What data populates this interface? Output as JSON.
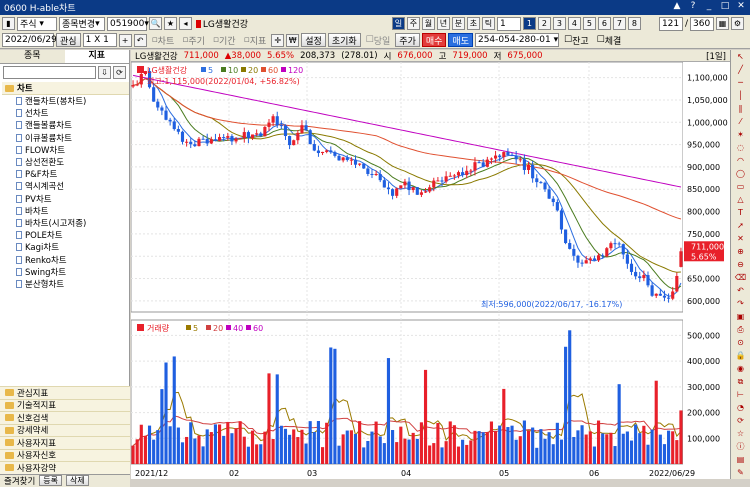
{
  "window": {
    "title": "0600 H-able차트",
    "controls": [
      "▲",
      "?",
      "_",
      "□",
      "✕"
    ]
  },
  "toolbar1": {
    "type": "주식",
    "mode": "종목변경",
    "code": "051900",
    "stock_name": "LG생활건강",
    "periods": [
      "일",
      "주",
      "월",
      "년",
      "분",
      "초",
      "틱"
    ],
    "period_value": "1",
    "num_buttons": [
      "1",
      "2",
      "3",
      "4",
      "5",
      "6",
      "7",
      "8"
    ],
    "count": "121",
    "total": "360"
  },
  "toolbar2": {
    "date": "2022/06/29",
    "interest": "관심",
    "scale": "1 X 1",
    "opt_chart": "차트",
    "opt_period": "주기",
    "opt_range": "기간",
    "opt_index": "지표",
    "settings": "설정",
    "reset": "초기화",
    "same_day": "당일",
    "price": "주가",
    "buy": "매수",
    "sell": "매도",
    "account": "254-054-280-01",
    "balance": "잔고",
    "executed": "체결"
  },
  "left": {
    "tabs": [
      "종목",
      "지표"
    ],
    "category": "차트",
    "items": [
      "캔들차트(봉차트)",
      "선차트",
      "캔들볼륨차트",
      "이큐볼륨차트",
      "FLOW차트",
      "삼선전환도",
      "P&F차트",
      "역시계곡선",
      "PV차트",
      "바차트",
      "바차트(시고저종)",
      "POLE차트",
      "Kagi차트",
      "Renko차트",
      "Swing차트",
      "분산형차트"
    ],
    "bottom_cats": [
      "관심지표",
      "기술적지표",
      "신호검색",
      "강세약세",
      "사용자지표",
      "사용자신호",
      "사용자강약"
    ],
    "footer": {
      "label": "즐겨찾기",
      "add": "등록",
      "delete": "삭제"
    }
  },
  "header": {
    "name": "LG생활건강",
    "price": "711,000",
    "change": "▲38,000",
    "pct": "5.65%",
    "volume": "208,373",
    "amount": "(278.01)",
    "open_lbl": "시",
    "open": "676,000",
    "high_lbl": "고",
    "high": "719,000",
    "low_lbl": "저",
    "low": "675,000",
    "period": "[1일]"
  },
  "legend_price": {
    "name": "LG생활건강",
    "mas": [
      "5",
      "10",
      "20",
      "60",
      "120"
    ]
  },
  "legend_vol": {
    "name": "거래량",
    "mas": [
      "5",
      "20",
      "40",
      "60"
    ]
  },
  "annot": {
    "max": "최고:1,115,000(2022/01/04, +56.82%)",
    "min": "최저:596,000(2022/06/17, -16.17%)",
    "cur_price": "711,000",
    "cur_pct": "5.65%"
  },
  "x_labels": [
    "2021/12",
    "02",
    "03",
    "04",
    "05",
    "06",
    "2022/06/29"
  ],
  "colors": {
    "up": "#e8202a",
    "down": "#1f5fe0",
    "ma5": "#2e6fe0",
    "ma10": "#4a7c20",
    "ma20": "#8a7a00",
    "ma60": "#e05030",
    "ma120": "#c000c0"
  },
  "chart_data": {
    "type": "candlestick",
    "y_ticks": [
      "1,100,000",
      "1,050,000",
      "1,000,000",
      "950,000",
      "900,000",
      "850,000",
      "800,000",
      "750,000",
      "700,000",
      "650,000",
      "600,000"
    ],
    "volume_ticks": [
      "500,000",
      "400,000",
      "300,000",
      "200,000",
      "100,000"
    ],
    "ylim": [
      575000,
      1135000
    ],
    "vol_max": 560000,
    "max": {
      "date": "2022/01/04",
      "value": 1115000
    },
    "min": {
      "date": "2022/06/17",
      "value": 596000
    },
    "last": {
      "date": "2022/06/29",
      "open": 676000,
      "high": 719000,
      "low": 675000,
      "close": 711000,
      "volume": 208373
    }
  }
}
